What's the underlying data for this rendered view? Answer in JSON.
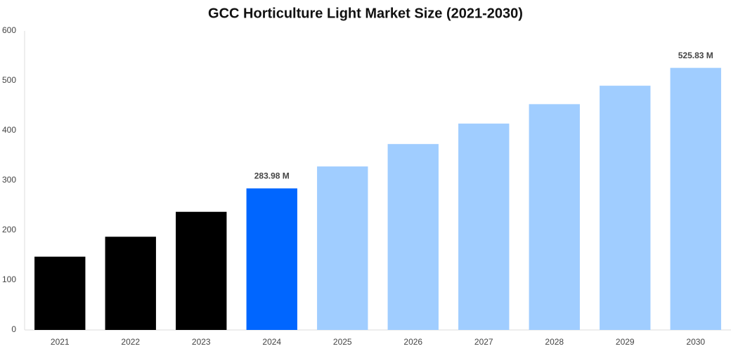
{
  "chart_data": {
    "type": "bar",
    "title": "GCC Horticulture Light Market Size (2021-2030)",
    "categories": [
      "2021",
      "2022",
      "2023",
      "2024",
      "2025",
      "2026",
      "2027",
      "2028",
      "2029",
      "2030"
    ],
    "values": [
      147,
      187,
      237,
      283.98,
      328,
      373,
      414,
      453,
      490,
      525.83
    ],
    "value_labels": [
      null,
      null,
      null,
      "283.98 M",
      null,
      null,
      null,
      null,
      null,
      "525.83 M"
    ],
    "colors": [
      "#000000",
      "#000000",
      "#000000",
      "#0066ff",
      "#a0cdff",
      "#a0cdff",
      "#a0cdff",
      "#a0cdff",
      "#a0cdff",
      "#a0cdff"
    ],
    "ylim": [
      0,
      600
    ],
    "yticks": [
      0,
      100,
      200,
      300,
      400,
      500,
      600
    ],
    "grid": false
  }
}
